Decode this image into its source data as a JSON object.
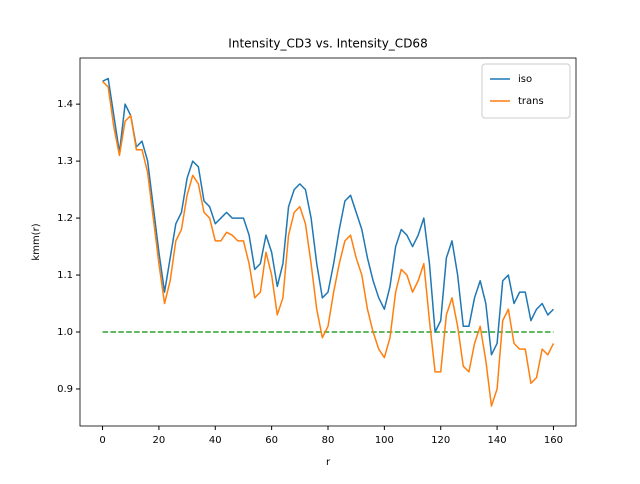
{
  "chart_data": {
    "type": "line",
    "title": "Intensity_CD3 vs. Intensity_CD68",
    "x_label": "r",
    "y_label": "kmm(r)",
    "x": [
      0,
      2,
      4,
      6,
      8,
      10,
      12,
      14,
      16,
      18,
      20,
      22,
      24,
      26,
      28,
      30,
      32,
      34,
      36,
      38,
      40,
      42,
      44,
      46,
      48,
      50,
      52,
      54,
      56,
      58,
      60,
      62,
      64,
      66,
      68,
      70,
      72,
      74,
      76,
      78,
      80,
      82,
      84,
      86,
      88,
      90,
      92,
      94,
      96,
      98,
      100,
      102,
      104,
      106,
      108,
      110,
      112,
      114,
      116,
      118,
      120,
      122,
      124,
      126,
      128,
      130,
      132,
      134,
      136,
      138,
      140,
      142,
      144,
      146,
      148,
      150,
      152,
      154,
      156,
      158,
      160
    ],
    "series": [
      {
        "name": "iso",
        "color": "#1f77b4",
        "values": [
          1.44,
          1.445,
          1.38,
          1.315,
          1.4,
          1.38,
          1.325,
          1.335,
          1.3,
          1.22,
          1.14,
          1.07,
          1.13,
          1.19,
          1.21,
          1.27,
          1.3,
          1.29,
          1.23,
          1.22,
          1.19,
          1.2,
          1.21,
          1.2,
          1.2,
          1.2,
          1.17,
          1.11,
          1.12,
          1.17,
          1.14,
          1.08,
          1.12,
          1.22,
          1.25,
          1.26,
          1.25,
          1.2,
          1.12,
          1.06,
          1.07,
          1.12,
          1.18,
          1.23,
          1.24,
          1.21,
          1.18,
          1.13,
          1.09,
          1.06,
          1.04,
          1.08,
          1.15,
          1.18,
          1.17,
          1.15,
          1.17,
          1.2,
          1.12,
          1.0,
          1.02,
          1.13,
          1.16,
          1.1,
          1.01,
          1.01,
          1.06,
          1.09,
          1.05,
          0.96,
          0.98,
          1.09,
          1.1,
          1.05,
          1.07,
          1.07,
          1.02,
          1.04,
          1.05,
          1.03,
          1.04
        ]
      },
      {
        "name": "trans",
        "color": "#ff7f0e",
        "values": [
          1.44,
          1.43,
          1.36,
          1.31,
          1.37,
          1.38,
          1.32,
          1.32,
          1.28,
          1.2,
          1.12,
          1.05,
          1.09,
          1.16,
          1.18,
          1.24,
          1.275,
          1.26,
          1.21,
          1.2,
          1.16,
          1.16,
          1.175,
          1.17,
          1.16,
          1.16,
          1.12,
          1.06,
          1.07,
          1.14,
          1.1,
          1.03,
          1.06,
          1.17,
          1.21,
          1.22,
          1.19,
          1.12,
          1.04,
          0.99,
          1.01,
          1.07,
          1.12,
          1.16,
          1.17,
          1.13,
          1.1,
          1.04,
          1.0,
          0.97,
          0.955,
          0.99,
          1.07,
          1.11,
          1.1,
          1.07,
          1.09,
          1.12,
          1.02,
          0.93,
          0.93,
          1.03,
          1.06,
          1.01,
          0.94,
          0.93,
          0.98,
          1.01,
          0.95,
          0.87,
          0.9,
          1.02,
          1.04,
          0.98,
          0.97,
          0.97,
          0.91,
          0.92,
          0.97,
          0.96,
          0.98
        ]
      }
    ],
    "hline": {
      "y": 1,
      "x": [
        0,
        160
      ],
      "color": "#2ca02c",
      "dashed": true
    },
    "xlim": [
      -8,
      168
    ],
    "ylim": [
      0.835,
      1.481
    ],
    "xticks": [
      0,
      20,
      40,
      60,
      80,
      100,
      120,
      140,
      160
    ],
    "yticks": [
      0.9,
      {
        "value": 1,
        "label": "1.0"
      },
      1.1,
      1.2,
      1.3,
      1.4
    ],
    "legend": "upper right"
  }
}
